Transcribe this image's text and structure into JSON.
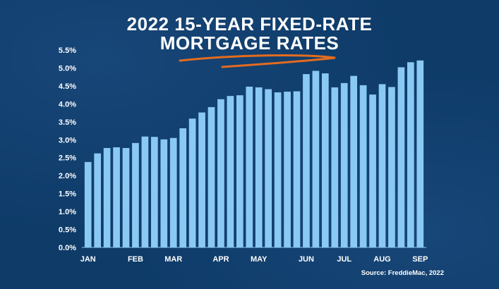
{
  "colors": {
    "background": "#0e3b68",
    "bar": "#8ac9f3",
    "text": "#ffffff",
    "underline": "#e36c1f"
  },
  "header": {
    "title_line1": "2022 15-YEAR FIXED-RATE",
    "title_line2": "MORTGAGE RATES"
  },
  "footer": {
    "source": "Source: FreddieMac, 2022"
  },
  "chart_data": {
    "type": "bar",
    "title": "2022 15-YEAR FIXED-RATE MORTGAGE RATES",
    "ylim": [
      0,
      5.5
    ],
    "yticks": [
      "0.0%",
      "0.5%",
      "1.0%",
      "1.5%",
      "2.0%",
      "2.5%",
      "3.0%",
      "3.5%",
      "4.0%",
      "4.5%",
      "5.0%",
      "5.5%"
    ],
    "month_labels": [
      "JAN",
      "FEB",
      "MAR",
      "APR",
      "MAY",
      "JUN",
      "JUL",
      "AUG",
      "SEP"
    ],
    "month_label_positions": [
      0,
      5,
      9,
      14,
      18,
      23,
      27,
      31,
      35
    ],
    "values": [
      2.38,
      2.62,
      2.77,
      2.79,
      2.77,
      2.91,
      3.09,
      3.08,
      3.01,
      3.05,
      3.32,
      3.59,
      3.76,
      3.91,
      4.13,
      4.22,
      4.24,
      4.48,
      4.46,
      4.41,
      4.32,
      4.34,
      4.35,
      4.83,
      4.92,
      4.85,
      4.46,
      4.58,
      4.78,
      4.52,
      4.26,
      4.55,
      4.47,
      5.02,
      5.16,
      5.21
    ],
    "grid": false,
    "legend": "none"
  }
}
